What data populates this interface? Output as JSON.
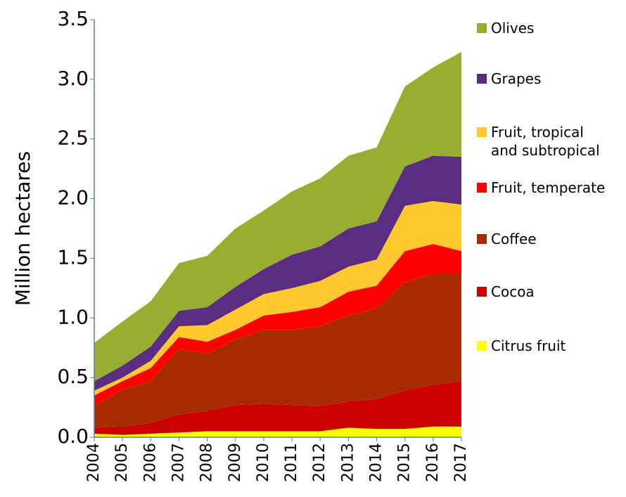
{
  "chart_data": {
    "type": "stacked_area",
    "ylabel": "Million hectares",
    "categories": [
      "2004",
      "2005",
      "2006",
      "2007",
      "2008",
      "2009",
      "2010",
      "2011",
      "2012",
      "2013",
      "2014",
      "2015",
      "2016",
      "2017"
    ],
    "ylim": [
      0,
      3.5
    ],
    "yticks": [
      {
        "value": 0,
        "label": "0.0"
      },
      0.5,
      {
        "value": 1,
        "label": "1.0"
      },
      1.5,
      {
        "value": 2,
        "label": "2.0"
      },
      2.5,
      {
        "value": 3,
        "label": "3.0"
      },
      3.5
    ],
    "legend": "right",
    "series": [
      {
        "name": "Citrus fruit",
        "color": "#ffff00",
        "values": [
          0.03,
          0.02,
          0.03,
          0.04,
          0.05,
          0.05,
          0.05,
          0.05,
          0.05,
          0.08,
          0.07,
          0.07,
          0.09,
          0.09
        ]
      },
      {
        "name": "Cocoa",
        "color": "#cc0000",
        "values": [
          0.05,
          0.07,
          0.09,
          0.15,
          0.17,
          0.22,
          0.23,
          0.22,
          0.21,
          0.22,
          0.25,
          0.32,
          0.35,
          0.38
        ]
      },
      {
        "name": "Coffee",
        "color": "#a82a00",
        "values": [
          0.18,
          0.31,
          0.35,
          0.55,
          0.48,
          0.55,
          0.62,
          0.63,
          0.67,
          0.72,
          0.76,
          0.91,
          0.93,
          0.9
        ]
      },
      {
        "name": "Fruit, temperate",
        "color": "#ff0000",
        "values": [
          0.09,
          0.07,
          0.11,
          0.1,
          0.1,
          0.08,
          0.12,
          0.15,
          0.16,
          0.2,
          0.19,
          0.26,
          0.25,
          0.19
        ]
      },
      {
        "name": "Fruit, tropical and subtropical",
        "color": "#ffc82e",
        "values": [
          0.04,
          0.03,
          0.06,
          0.09,
          0.14,
          0.17,
          0.18,
          0.2,
          0.22,
          0.21,
          0.22,
          0.38,
          0.36,
          0.39
        ]
      },
      {
        "name": "Grapes",
        "color": "#5a2d82",
        "values": [
          0.08,
          0.1,
          0.12,
          0.13,
          0.15,
          0.19,
          0.21,
          0.28,
          0.29,
          0.32,
          0.32,
          0.33,
          0.38,
          0.4
        ]
      },
      {
        "name": "Olives",
        "color": "#99ad30",
        "values": [
          0.32,
          0.37,
          0.38,
          0.4,
          0.43,
          0.49,
          0.49,
          0.53,
          0.57,
          0.61,
          0.62,
          0.67,
          0.74,
          0.88
        ]
      }
    ]
  }
}
